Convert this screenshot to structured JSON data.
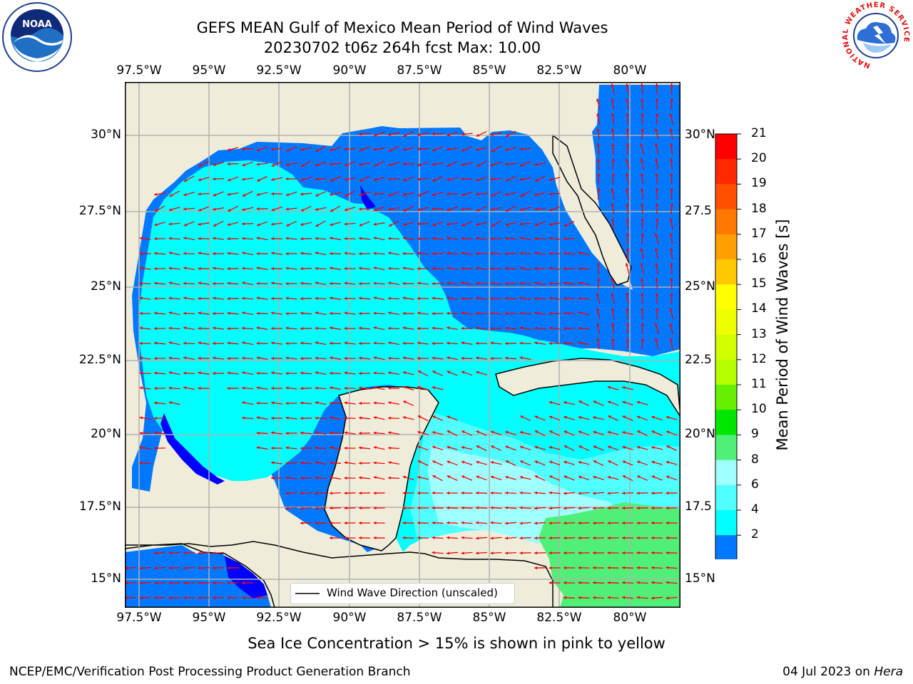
{
  "title_line1": "GEFS MEAN Gulf of Mexico Mean Period of Wind Waves",
  "title_line2": "20230702 t06z 264h fcst   Max: 10.00",
  "subcaption": "Sea Ice Concentration > 15% is shown in pink to yellow",
  "footer_left": "NCEP/EMC/Verification Post Processing Product Generation Branch",
  "footer_date": "04 Jul 2023 on ",
  "footer_host": "Hera",
  "logos": {
    "noaa_text": "NOAA",
    "nws_ring_text": "NATIONAL WEATHER SERVICE"
  },
  "legend_label": "Wind Wave Direction (unscaled)",
  "lon_labels": [
    "97.5°W",
    "95°W",
    "92.5°W",
    "90°W",
    "87.5°W",
    "85°W",
    "82.5°W",
    "80°W"
  ],
  "lat_labels": [
    "30°N",
    "27.5°N",
    "25°N",
    "22.5°N",
    "20°N",
    "17.5°N",
    "15°N"
  ],
  "lat_labels_right": [
    "30°N",
    "27.5",
    "25°N",
    "22.5",
    "20°N",
    "17.5",
    "15°N"
  ],
  "colorbar": {
    "title": "Mean Period of Wind Waves [s]",
    "ticks": [
      "21",
      "20",
      "19",
      "18",
      "17",
      "16",
      "15",
      "14",
      "13",
      "12",
      "11",
      "10",
      "9",
      "8",
      "6",
      "4",
      "2"
    ],
    "colors": [
      "#ff0000",
      "#ff2800",
      "#ff5000",
      "#ff7800",
      "#ffa000",
      "#ffc800",
      "#ffff00",
      "#f0ff00",
      "#d2ff00",
      "#b4ff00",
      "#64f000",
      "#00e600",
      "#50f078",
      "#a0ffff",
      "#50ffff",
      "#00ffff",
      "#0078ff"
    ],
    "under_color": "#0000ff"
  },
  "map": {
    "region": "Gulf of Mexico",
    "lon_range": [
      -98.0,
      -78.5
    ],
    "lat_range": [
      14.0,
      31.5
    ],
    "land_color": "#efedda",
    "field_levels": [
      {
        "label": "<2",
        "color": "#0000ff"
      },
      {
        "label": "2-4",
        "color": "#0078ff"
      },
      {
        "label": "4-6",
        "color": "#00ffff"
      },
      {
        "label": "6-8",
        "color": "#50ffff"
      },
      {
        "label": "8-9",
        "color": "#a0ffff"
      },
      {
        "label": "9-10",
        "color": "#50f078"
      }
    ],
    "arrow_color": "#ff0000"
  }
}
